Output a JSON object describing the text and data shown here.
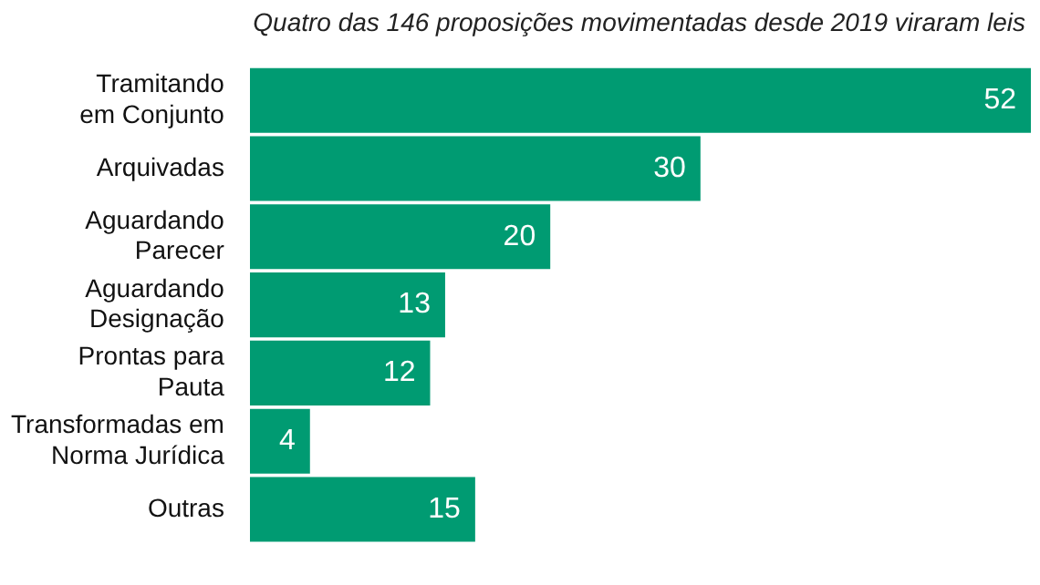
{
  "chart_data": {
    "type": "bar",
    "orientation": "horizontal",
    "subtitle": "Quatro das 146 proposições movimentadas desde 2019 viraram leis",
    "categories": [
      "Tramitando\nem Conjunto",
      "Arquivadas",
      "Aguardando\nParecer",
      "Aguardando\nDesignação",
      "Prontas para\nPauta",
      "Transformadas em\nNorma Jurídica",
      "Outras"
    ],
    "values": [
      52,
      30,
      20,
      13,
      12,
      4,
      15
    ],
    "color": "#009b72",
    "data_labels": true,
    "legend": false
  }
}
